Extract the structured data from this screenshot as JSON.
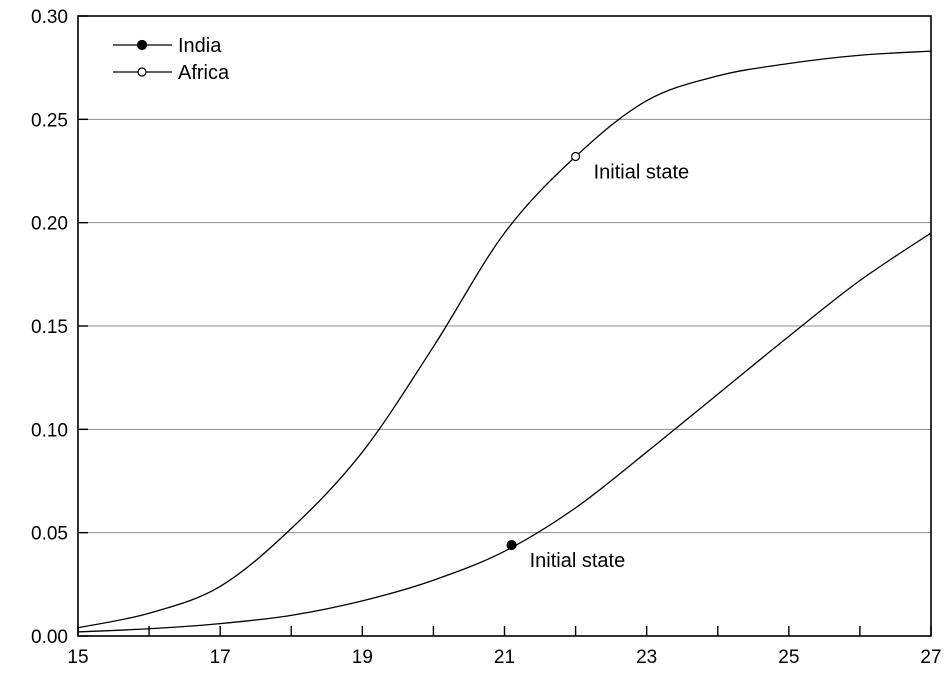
{
  "chart_data": {
    "type": "line",
    "title": "",
    "xlabel": "",
    "ylabel": "",
    "xlim": [
      15,
      27
    ],
    "ylim": [
      0.0,
      0.3
    ],
    "x_ticks": [
      15,
      17,
      19,
      21,
      23,
      25,
      27
    ],
    "x_tick_labels": [
      "15",
      "17",
      "19",
      "21",
      "23",
      "25",
      "27"
    ],
    "y_ticks": [
      0.0,
      0.05,
      0.1,
      0.15,
      0.2,
      0.25,
      0.3
    ],
    "y_tick_labels": [
      "0.00",
      "0.05",
      "0.10",
      "0.15",
      "0.20",
      "0.25",
      "0.30"
    ],
    "grid": "horizontal",
    "legend_position": "top-left",
    "series": [
      {
        "name": "India",
        "marker": "filled-circle",
        "color": "#000000",
        "x": [
          15,
          16,
          17,
          18,
          19,
          20,
          21,
          22,
          23,
          24,
          25,
          26,
          27
        ],
        "y": [
          0.002,
          0.0035,
          0.006,
          0.01,
          0.017,
          0.027,
          0.041,
          0.062,
          0.089,
          0.117,
          0.145,
          0.172,
          0.195
        ]
      },
      {
        "name": "Africa",
        "marker": "open-circle",
        "color": "#000000",
        "x": [
          15,
          16,
          17,
          18,
          19,
          20,
          21,
          22,
          23,
          24,
          25,
          26,
          27
        ],
        "y": [
          0.004,
          0.011,
          0.024,
          0.052,
          0.089,
          0.14,
          0.195,
          0.232,
          0.259,
          0.271,
          0.277,
          0.281,
          0.283
        ]
      }
    ],
    "annotations": [
      {
        "series": "India",
        "text": "Initial state",
        "x": 21.1,
        "y": 0.044,
        "marker": "filled-circle"
      },
      {
        "series": "Africa",
        "text": "Initial state",
        "x": 22.0,
        "y": 0.232,
        "marker": "open-circle"
      }
    ]
  }
}
